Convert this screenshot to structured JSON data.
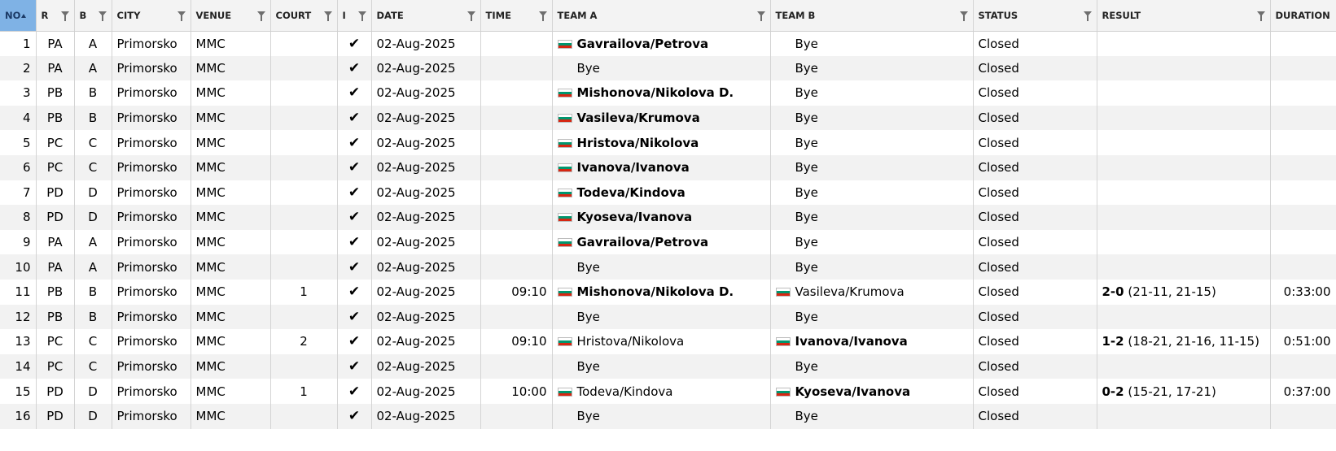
{
  "columns": [
    {
      "key": "no",
      "label": "NO",
      "sorted": true
    },
    {
      "key": "r",
      "label": "R"
    },
    {
      "key": "b",
      "label": "B"
    },
    {
      "key": "city",
      "label": "CITY"
    },
    {
      "key": "venue",
      "label": "VENUE"
    },
    {
      "key": "court",
      "label": "COURT"
    },
    {
      "key": "flag",
      "label": "I"
    },
    {
      "key": "date",
      "label": "DATE"
    },
    {
      "key": "time",
      "label": "TIME"
    },
    {
      "key": "team_a",
      "label": "TEAM A"
    },
    {
      "key": "team_b",
      "label": "TEAM B"
    },
    {
      "key": "status",
      "label": "STATUS"
    },
    {
      "key": "result",
      "label": "RESULT"
    },
    {
      "key": "duration",
      "label": "DURATION"
    }
  ],
  "icons": {
    "check": "check-icon",
    "filter": "filter-icon",
    "sort": "sort-ascending-icon",
    "flag": "bulgaria-flag-icon"
  },
  "colors": {
    "header_sorted": "#7fb2e5",
    "row_alt": "#f2f2f2",
    "flag_white": "#ffffff",
    "flag_green": "#00966e",
    "flag_red": "#d62612"
  },
  "rows": [
    {
      "no": "1",
      "r": "PA",
      "b": "A",
      "city": "Primorsko",
      "venue": "MMC",
      "court": "",
      "checked": true,
      "date": "02-Aug-2025",
      "time": "",
      "team_a": "Gavrailova/Petrova",
      "team_a_flag": true,
      "team_b": "Bye",
      "team_b_flag": false,
      "winner": "a",
      "status": "Closed",
      "result_score": "",
      "result_sets": "",
      "duration": ""
    },
    {
      "no": "2",
      "r": "PA",
      "b": "A",
      "city": "Primorsko",
      "venue": "MMC",
      "court": "",
      "checked": true,
      "date": "02-Aug-2025",
      "time": "",
      "team_a": "Bye",
      "team_a_flag": false,
      "team_b": "Bye",
      "team_b_flag": false,
      "winner": "",
      "status": "Closed",
      "result_score": "",
      "result_sets": "",
      "duration": ""
    },
    {
      "no": "3",
      "r": "PB",
      "b": "B",
      "city": "Primorsko",
      "venue": "MMC",
      "court": "",
      "checked": true,
      "date": "02-Aug-2025",
      "time": "",
      "team_a": "Mishonova/Nikolova D.",
      "team_a_flag": true,
      "team_b": "Bye",
      "team_b_flag": false,
      "winner": "a",
      "status": "Closed",
      "result_score": "",
      "result_sets": "",
      "duration": ""
    },
    {
      "no": "4",
      "r": "PB",
      "b": "B",
      "city": "Primorsko",
      "venue": "MMC",
      "court": "",
      "checked": true,
      "date": "02-Aug-2025",
      "time": "",
      "team_a": "Vasileva/Krumova",
      "team_a_flag": true,
      "team_b": "Bye",
      "team_b_flag": false,
      "winner": "a",
      "status": "Closed",
      "result_score": "",
      "result_sets": "",
      "duration": ""
    },
    {
      "no": "5",
      "r": "PC",
      "b": "C",
      "city": "Primorsko",
      "venue": "MMC",
      "court": "",
      "checked": true,
      "date": "02-Aug-2025",
      "time": "",
      "team_a": "Hristova/Nikolova",
      "team_a_flag": true,
      "team_b": "Bye",
      "team_b_flag": false,
      "winner": "a",
      "status": "Closed",
      "result_score": "",
      "result_sets": "",
      "duration": ""
    },
    {
      "no": "6",
      "r": "PC",
      "b": "C",
      "city": "Primorsko",
      "venue": "MMC",
      "court": "",
      "checked": true,
      "date": "02-Aug-2025",
      "time": "",
      "team_a": "Ivanova/Ivanova",
      "team_a_flag": true,
      "team_b": "Bye",
      "team_b_flag": false,
      "winner": "a",
      "status": "Closed",
      "result_score": "",
      "result_sets": "",
      "duration": ""
    },
    {
      "no": "7",
      "r": "PD",
      "b": "D",
      "city": "Primorsko",
      "venue": "MMC",
      "court": "",
      "checked": true,
      "date": "02-Aug-2025",
      "time": "",
      "team_a": "Todeva/Kindova",
      "team_a_flag": true,
      "team_b": "Bye",
      "team_b_flag": false,
      "winner": "a",
      "status": "Closed",
      "result_score": "",
      "result_sets": "",
      "duration": ""
    },
    {
      "no": "8",
      "r": "PD",
      "b": "D",
      "city": "Primorsko",
      "venue": "MMC",
      "court": "",
      "checked": true,
      "date": "02-Aug-2025",
      "time": "",
      "team_a": "Kyoseva/Ivanova",
      "team_a_flag": true,
      "team_b": "Bye",
      "team_b_flag": false,
      "winner": "a",
      "status": "Closed",
      "result_score": "",
      "result_sets": "",
      "duration": ""
    },
    {
      "no": "9",
      "r": "PA",
      "b": "A",
      "city": "Primorsko",
      "venue": "MMC",
      "court": "",
      "checked": true,
      "date": "02-Aug-2025",
      "time": "",
      "team_a": "Gavrailova/Petrova",
      "team_a_flag": true,
      "team_b": "Bye",
      "team_b_flag": false,
      "winner": "a",
      "status": "Closed",
      "result_score": "",
      "result_sets": "",
      "duration": ""
    },
    {
      "no": "10",
      "r": "PA",
      "b": "A",
      "city": "Primorsko",
      "venue": "MMC",
      "court": "",
      "checked": true,
      "date": "02-Aug-2025",
      "time": "",
      "team_a": "Bye",
      "team_a_flag": false,
      "team_b": "Bye",
      "team_b_flag": false,
      "winner": "",
      "status": "Closed",
      "result_score": "",
      "result_sets": "",
      "duration": ""
    },
    {
      "no": "11",
      "r": "PB",
      "b": "B",
      "city": "Primorsko",
      "venue": "MMC",
      "court": "1",
      "checked": true,
      "date": "02-Aug-2025",
      "time": "09:10",
      "team_a": "Mishonova/Nikolova D.",
      "team_a_flag": true,
      "team_b": "Vasileva/Krumova",
      "team_b_flag": true,
      "winner": "a",
      "status": "Closed",
      "result_score": "2-0",
      "result_sets": "(21-11, 21-15)",
      "duration": "0:33:00"
    },
    {
      "no": "12",
      "r": "PB",
      "b": "B",
      "city": "Primorsko",
      "venue": "MMC",
      "court": "",
      "checked": true,
      "date": "02-Aug-2025",
      "time": "",
      "team_a": "Bye",
      "team_a_flag": false,
      "team_b": "Bye",
      "team_b_flag": false,
      "winner": "",
      "status": "Closed",
      "result_score": "",
      "result_sets": "",
      "duration": ""
    },
    {
      "no": "13",
      "r": "PC",
      "b": "C",
      "city": "Primorsko",
      "venue": "MMC",
      "court": "2",
      "checked": true,
      "date": "02-Aug-2025",
      "time": "09:10",
      "team_a": "Hristova/Nikolova",
      "team_a_flag": true,
      "team_b": "Ivanova/Ivanova",
      "team_b_flag": true,
      "winner": "b",
      "status": "Closed",
      "result_score": "1-2",
      "result_sets": "(18-21, 21-16, 11-15)",
      "duration": "0:51:00"
    },
    {
      "no": "14",
      "r": "PC",
      "b": "C",
      "city": "Primorsko",
      "venue": "MMC",
      "court": "",
      "checked": true,
      "date": "02-Aug-2025",
      "time": "",
      "team_a": "Bye",
      "team_a_flag": false,
      "team_b": "Bye",
      "team_b_flag": false,
      "winner": "",
      "status": "Closed",
      "result_score": "",
      "result_sets": "",
      "duration": ""
    },
    {
      "no": "15",
      "r": "PD",
      "b": "D",
      "city": "Primorsko",
      "venue": "MMC",
      "court": "1",
      "checked": true,
      "date": "02-Aug-2025",
      "time": "10:00",
      "team_a": "Todeva/Kindova",
      "team_a_flag": true,
      "team_b": "Kyoseva/Ivanova",
      "team_b_flag": true,
      "winner": "b",
      "status": "Closed",
      "result_score": "0-2",
      "result_sets": "(15-21, 17-21)",
      "duration": "0:37:00"
    },
    {
      "no": "16",
      "r": "PD",
      "b": "D",
      "city": "Primorsko",
      "venue": "MMC",
      "court": "",
      "checked": true,
      "date": "02-Aug-2025",
      "time": "",
      "team_a": "Bye",
      "team_a_flag": false,
      "team_b": "Bye",
      "team_b_flag": false,
      "winner": "",
      "status": "Closed",
      "result_score": "",
      "result_sets": "",
      "duration": ""
    }
  ]
}
